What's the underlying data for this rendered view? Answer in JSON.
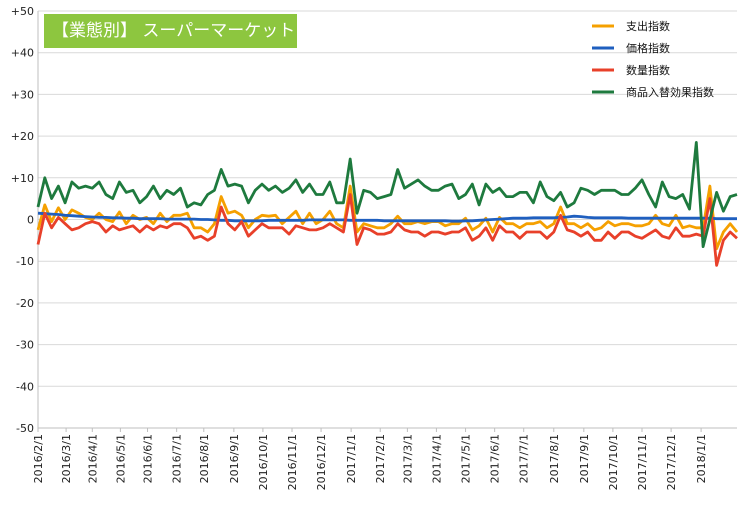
{
  "chart_data": {
    "type": "line",
    "title": "【業態別】 スーパーマーケット",
    "title_bg_color": "#8dc63f",
    "ylim": [
      -50,
      50
    ],
    "y_ticks": [
      50,
      40,
      30,
      20,
      10,
      0,
      -10,
      -20,
      -30,
      -40,
      -50
    ],
    "y_tick_labels": [
      "+50",
      "+40",
      "+30",
      "+20",
      "+10",
      "0",
      "-10",
      "-20",
      "-30",
      "-40",
      "-50"
    ],
    "x_tick_labels": [
      "2016/2/1",
      "2016/3/1",
      "2016/4/1",
      "2016/5/1",
      "2016/6/1",
      "2016/7/1",
      "2016/8/1",
      "2016/9/1",
      "2016/10/1",
      "2016/11/1",
      "2016/12/1",
      "2017/1/1",
      "2017/2/1",
      "2017/3/1",
      "2017/4/1",
      "2017/5/1",
      "2017/6/1",
      "2017/7/1",
      "2017/8/1",
      "2017/9/1",
      "2017/10/1",
      "2017/11/1",
      "2017/12/1",
      "2018/1/1"
    ],
    "x_tick_positions": [
      0,
      4.14,
      8,
      12.14,
      16.14,
      20.43,
      24.43,
      28.86,
      33.14,
      37.43,
      41.71,
      46.14,
      50.43,
      54.43,
      58.71,
      63,
      67.29,
      71.57,
      76,
      80.43,
      84.71,
      89,
      93.29,
      97.71
    ],
    "points_per_series": 104,
    "grid": true,
    "legend_position": "top-right",
    "series": [
      {
        "name": "支出指数",
        "color": "#f5a000",
        "values": [
          -2.5,
          3.5,
          -0.5,
          2.8,
          0,
          2.3,
          1.5,
          0.5,
          0,
          1.5,
          0,
          -0.5,
          1.8,
          -1,
          1,
          0,
          0.5,
          -1,
          1.5,
          -0.5,
          1,
          1,
          1.5,
          -2,
          -2,
          -3,
          -1,
          5.5,
          1.5,
          2,
          1,
          -2,
          0,
          1,
          0.8,
          1,
          -1,
          0.5,
          2,
          -1,
          1.5,
          -1,
          0,
          2,
          -1,
          -2,
          8,
          -3,
          -1,
          -1.5,
          -2,
          -2,
          -1,
          0.8,
          -1,
          -1,
          -0.5,
          -1,
          -0.5,
          -0.5,
          -1.5,
          -1,
          -1,
          0.3,
          -2.5,
          -1.5,
          0.3,
          -3,
          0.5,
          -1,
          -1,
          -2,
          -1,
          -1,
          -0.5,
          -2,
          -1,
          3,
          -1,
          -1,
          -2,
          -1,
          -2.5,
          -2,
          -0.5,
          -1.5,
          -1,
          -1,
          -1.5,
          -1.5,
          -1,
          1,
          -1,
          -1.5,
          1,
          -2,
          -1.5,
          -2,
          -2,
          8,
          -7,
          -3,
          -1,
          -3
        ]
      },
      {
        "name": "価格指数",
        "color": "#1f5fbf",
        "values": [
          1.5,
          1.4,
          1.3,
          1.2,
          1,
          0.9,
          0.8,
          0.7,
          0.6,
          0.5,
          0.5,
          0.4,
          0.4,
          0.3,
          0.3,
          0.2,
          0.2,
          0.2,
          0.2,
          0.1,
          0.1,
          0.1,
          0.1,
          0.1,
          0,
          0,
          -0.1,
          -0.2,
          -0.2,
          -0.3,
          -0.3,
          -0.3,
          -0.3,
          -0.3,
          -0.2,
          -0.2,
          -0.2,
          -0.2,
          -0.2,
          -0.2,
          -0.1,
          -0.1,
          -0.1,
          -0.1,
          -0.1,
          -0.1,
          -0.2,
          -0.2,
          -0.2,
          -0.2,
          -0.2,
          -0.3,
          -0.3,
          -0.3,
          -0.3,
          -0.3,
          -0.3,
          -0.3,
          -0.3,
          -0.3,
          -0.3,
          -0.4,
          -0.4,
          -0.3,
          -0.3,
          -0.2,
          -0.1,
          0,
          0.1,
          0.2,
          0.3,
          0.3,
          0.3,
          0.4,
          0.4,
          0.4,
          0.4,
          0.5,
          0.6,
          0.8,
          0.7,
          0.5,
          0.4,
          0.4,
          0.4,
          0.4,
          0.4,
          0.3,
          0.3,
          0.3,
          0.3,
          0.3,
          0.3,
          0.3,
          0.3,
          0.3,
          0.3,
          0.3,
          0.3,
          0.3,
          0.2,
          0.2,
          0.2,
          0.2
        ]
      },
      {
        "name": "数量指数",
        "color": "#e8402a",
        "values": [
          -6,
          1.5,
          -2,
          0.5,
          -1,
          -2.5,
          -2,
          -1,
          -0.5,
          -1,
          -3,
          -1.5,
          -2.5,
          -2,
          -1.5,
          -3,
          -1.5,
          -2.5,
          -1.5,
          -2,
          -1,
          -1,
          -2,
          -4.5,
          -4,
          -5,
          -4,
          3,
          -1,
          -2.5,
          -0.5,
          -4,
          -2.5,
          -1,
          -2,
          -2,
          -2,
          -3.5,
          -1.5,
          -2,
          -2.5,
          -2.5,
          -2,
          -1,
          -2,
          -3,
          6,
          -6,
          -2,
          -2.5,
          -3.5,
          -3.5,
          -3,
          -1,
          -2.5,
          -3,
          -3,
          -4,
          -3,
          -3,
          -3.5,
          -3,
          -3,
          -2,
          -5,
          -4,
          -2,
          -5,
          -1.5,
          -3,
          -3,
          -4.5,
          -3,
          -3,
          -3,
          -4.5,
          -3,
          1,
          -2.5,
          -3,
          -4,
          -3,
          -5,
          -5,
          -3,
          -4.5,
          -3,
          -3,
          -4,
          -4.5,
          -3.5,
          -2.5,
          -4,
          -4.5,
          -2,
          -4,
          -4,
          -3.5,
          -4,
          5,
          -11,
          -5,
          -3,
          -4.5
        ]
      },
      {
        "name": "商品入替効果指数",
        "color": "#1e7a3e",
        "values": [
          3,
          10,
          5,
          8,
          4,
          9,
          7.5,
          8,
          7.5,
          9,
          6,
          5,
          9,
          6.5,
          7,
          4,
          5.5,
          8,
          5,
          7,
          6,
          7.5,
          3,
          4,
          3.5,
          6,
          7,
          12,
          8,
          8.5,
          8,
          4,
          7,
          8.5,
          7,
          8,
          6.5,
          7.5,
          9.5,
          6.5,
          8.5,
          6,
          6,
          9,
          4,
          4,
          14.5,
          1.5,
          7,
          6.5,
          5,
          5.5,
          6,
          12,
          7.5,
          8.5,
          9.5,
          8,
          7,
          7,
          8,
          8.5,
          5,
          6,
          8.5,
          3.5,
          8.5,
          6.5,
          7.5,
          5.5,
          5.5,
          6.5,
          6.5,
          4,
          9,
          5.5,
          4.5,
          6.5,
          3,
          4,
          7.5,
          7,
          6,
          7,
          7,
          7,
          6,
          6,
          7.5,
          9.5,
          6,
          3,
          9,
          5.5,
          5,
          6,
          2.5,
          18.5,
          -6.5,
          0,
          6.5,
          2,
          5.5,
          6
        ]
      }
    ]
  }
}
